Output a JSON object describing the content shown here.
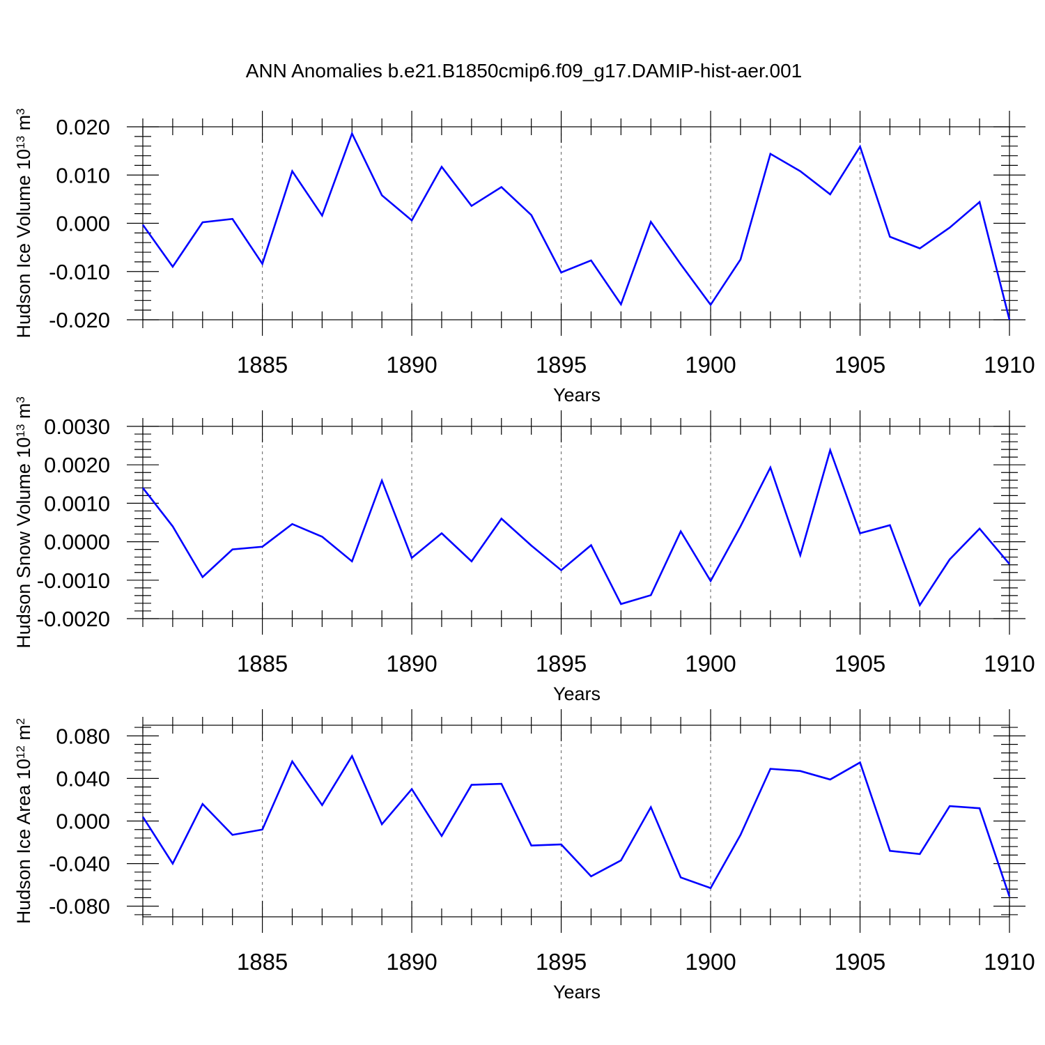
{
  "figure": {
    "title": "ANN Anomalies b.e21.B1850cmip6.f09_g17.DAMIP-hist-aer.001"
  },
  "chart_data": [
    {
      "type": "line",
      "xlabel": "Years",
      "ylabel": {
        "text": "Hudson Ice Volume 10",
        "exp": "13",
        "unit": " m",
        "unit_exp": "3"
      },
      "xlim": [
        1881,
        1910
      ],
      "ylim": [
        -0.02,
        0.02
      ],
      "x_ticks": [
        1885,
        1890,
        1895,
        1900,
        1905,
        1910
      ],
      "x_tick_labels": [
        "1885",
        "1890",
        "1895",
        "1900",
        "1905",
        "1910"
      ],
      "y_ticks": [
        -0.02,
        -0.01,
        0.0,
        0.01,
        0.02
      ],
      "y_tick_labels": [
        "-0.020",
        "-0.010",
        "0.000",
        "0.010",
        "0.020"
      ],
      "grid": "vertical dashed at major x ticks",
      "series": [
        {
          "color": "#0000ff",
          "x": [
            1881,
            1882,
            1883,
            1884,
            1885,
            1886,
            1887,
            1888,
            1889,
            1890,
            1891,
            1892,
            1893,
            1894,
            1895,
            1896,
            1897,
            1898,
            1899,
            1900,
            1901,
            1902,
            1903,
            1904,
            1905,
            1906,
            1907,
            1908,
            1909,
            1910
          ],
          "y": [
            -0.0003,
            -0.009,
            0.0002,
            0.0009,
            -0.0084,
            0.0108,
            0.0016,
            0.0186,
            0.0058,
            0.0006,
            0.0117,
            0.0036,
            0.0075,
            0.0017,
            -0.0102,
            -0.0077,
            -0.0168,
            0.0003,
            -0.0085,
            -0.0169,
            -0.0075,
            0.0144,
            0.0108,
            0.006,
            0.0159,
            -0.0028,
            -0.0052,
            -0.0009,
            0.0044,
            -0.02
          ]
        }
      ]
    },
    {
      "type": "line",
      "xlabel": "Years",
      "ylabel": {
        "text": "Hudson Snow Volume 10",
        "exp": "13",
        "unit": " m",
        "unit_exp": "3"
      },
      "xlim": [
        1881,
        1910
      ],
      "ylim": [
        -0.002,
        0.003
      ],
      "x_ticks": [
        1885,
        1890,
        1895,
        1900,
        1905,
        1910
      ],
      "x_tick_labels": [
        "1885",
        "1890",
        "1895",
        "1900",
        "1905",
        "1910"
      ],
      "y_ticks": [
        -0.002,
        -0.001,
        0.0,
        0.001,
        0.002,
        0.003
      ],
      "y_tick_labels": [
        "-0.0020",
        "-0.0010",
        "0.0000",
        "0.0010",
        "0.0020",
        "0.0030"
      ],
      "grid": "vertical dashed at major x ticks",
      "series": [
        {
          "color": "#0000ff",
          "x": [
            1881,
            1882,
            1883,
            1884,
            1885,
            1886,
            1887,
            1888,
            1889,
            1890,
            1891,
            1892,
            1893,
            1894,
            1895,
            1896,
            1897,
            1898,
            1899,
            1900,
            1901,
            1902,
            1903,
            1904,
            1905,
            1906,
            1907,
            1908,
            1909,
            1910
          ],
          "y": [
            0.0014,
            0.0004,
            -0.00092,
            -0.0002,
            -0.00013,
            0.00046,
            0.00013,
            -0.00051,
            0.00159,
            -0.00042,
            0.00022,
            -0.00051,
            0.0006,
            -0.0001,
            -0.00074,
            -9e-05,
            -0.00162,
            -0.00139,
            0.00027,
            -0.00102,
            0.0004,
            0.00193,
            -0.00035,
            0.00238,
            0.00022,
            0.00043,
            -0.00165,
            -0.00046,
            0.00034,
            -0.00058
          ]
        }
      ]
    },
    {
      "type": "line",
      "xlabel": "Years",
      "ylabel": {
        "text": "Hudson Ice Area 10",
        "exp": "12",
        "unit": " m",
        "unit_exp": "2"
      },
      "xlim": [
        1881,
        1910
      ],
      "ylim": [
        -0.09,
        0.09
      ],
      "x_ticks": [
        1885,
        1890,
        1895,
        1900,
        1905,
        1910
      ],
      "x_tick_labels": [
        "1885",
        "1890",
        "1895",
        "1900",
        "1905",
        "1910"
      ],
      "y_ticks": [
        -0.08,
        -0.04,
        0.0,
        0.04,
        0.08
      ],
      "y_tick_labels": [
        "-0.080",
        "-0.040",
        "0.000",
        "0.040",
        "0.080"
      ],
      "grid": "vertical dashed at major x ticks",
      "series": [
        {
          "color": "#0000ff",
          "x": [
            1881,
            1882,
            1883,
            1884,
            1885,
            1886,
            1887,
            1888,
            1889,
            1890,
            1891,
            1892,
            1893,
            1894,
            1895,
            1896,
            1897,
            1898,
            1899,
            1900,
            1901,
            1902,
            1903,
            1904,
            1905,
            1906,
            1907,
            1908,
            1909,
            1910
          ],
          "y": [
            0.004,
            -0.04,
            0.016,
            -0.013,
            -0.008,
            0.056,
            0.015,
            0.061,
            -0.003,
            0.03,
            -0.014,
            0.034,
            0.035,
            -0.023,
            -0.022,
            -0.052,
            -0.037,
            0.013,
            -0.053,
            -0.063,
            -0.013,
            0.049,
            0.047,
            0.039,
            0.055,
            -0.028,
            -0.031,
            0.014,
            0.012,
            -0.071
          ]
        }
      ]
    }
  ]
}
